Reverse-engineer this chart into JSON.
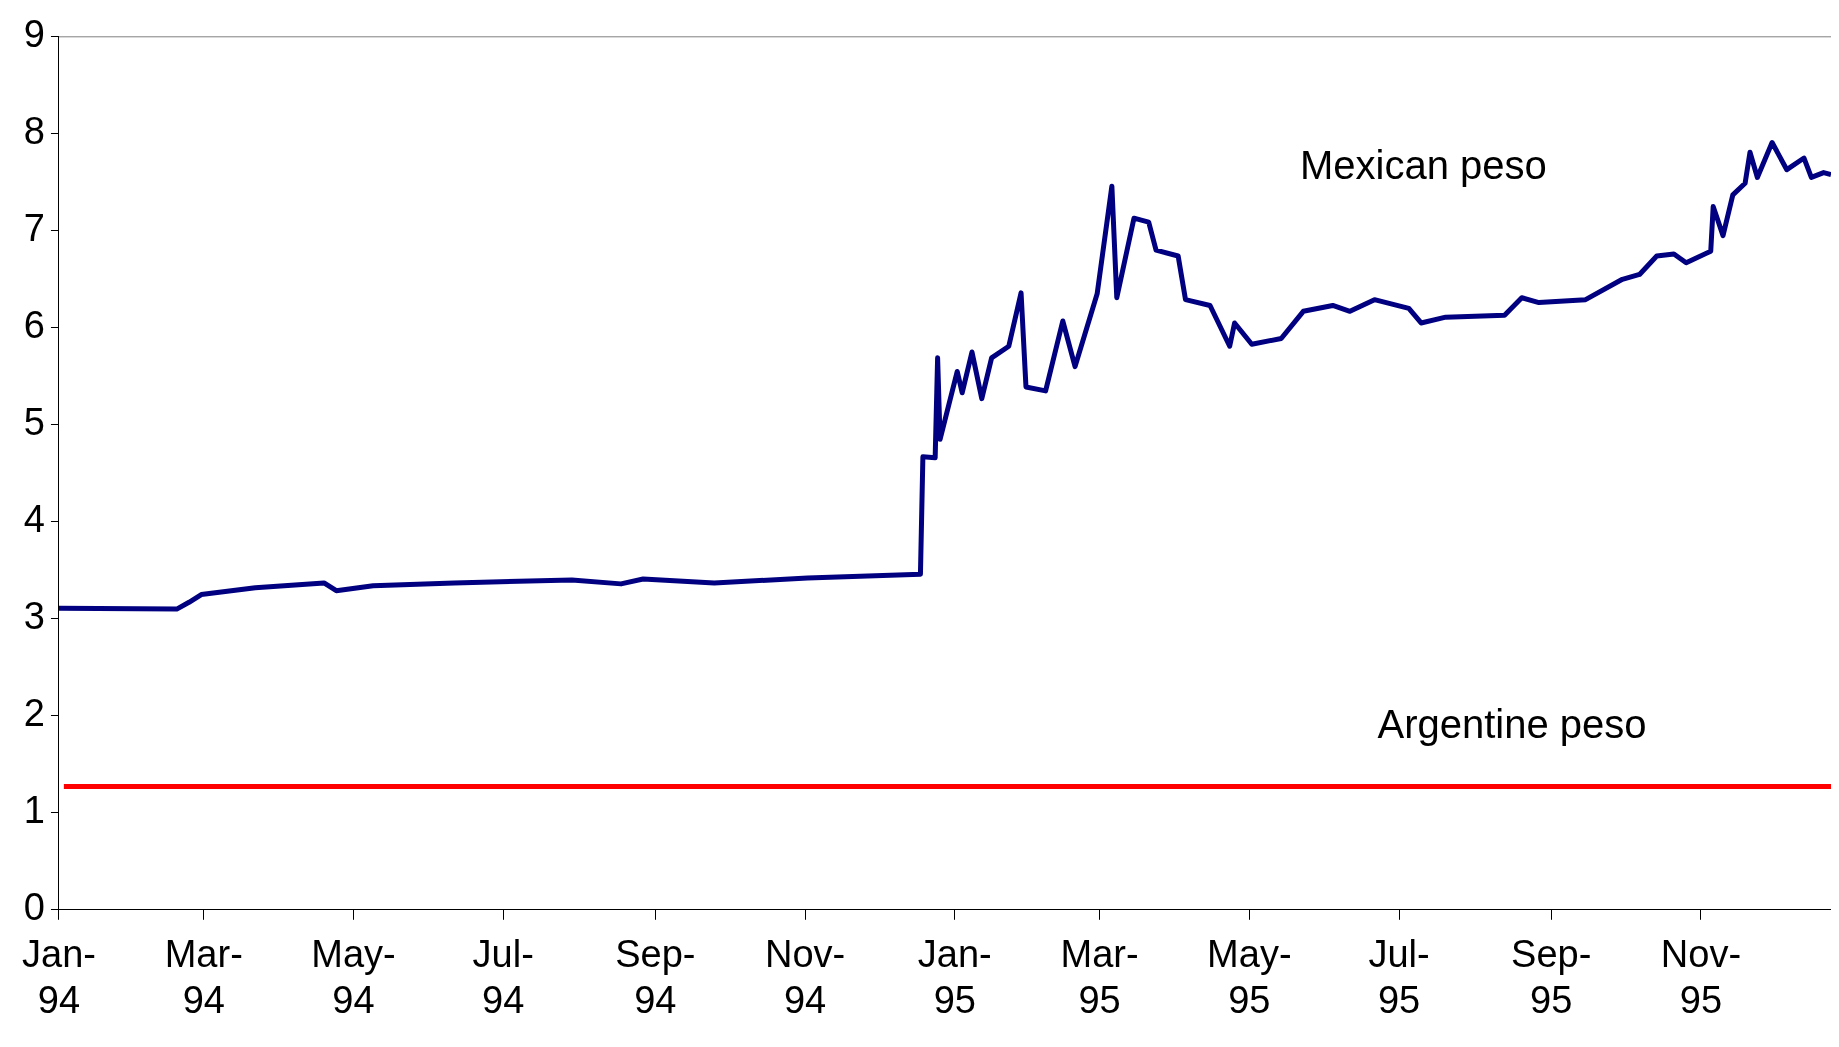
{
  "chart_data": {
    "type": "line",
    "xlim": [
      "1994-01-01",
      "1995-12-24"
    ],
    "ylim": [
      0,
      9
    ],
    "yticks": [
      0,
      1,
      2,
      3,
      4,
      5,
      6,
      7,
      8,
      9
    ],
    "xticks": [
      {
        "value": "1994-01-01",
        "label": "Jan-94"
      },
      {
        "value": "1994-03-01",
        "label": "Mar-94"
      },
      {
        "value": "1994-05-01",
        "label": "May-94"
      },
      {
        "value": "1994-07-01",
        "label": "Jul-94"
      },
      {
        "value": "1994-09-01",
        "label": "Sep-94"
      },
      {
        "value": "1994-11-01",
        "label": "Nov-94"
      },
      {
        "value": "1995-01-01",
        "label": "Jan-95"
      },
      {
        "value": "1995-03-01",
        "label": "Mar-95"
      },
      {
        "value": "1995-05-01",
        "label": "May-95"
      },
      {
        "value": "1995-07-01",
        "label": "Jul-95"
      },
      {
        "value": "1995-09-01",
        "label": "Sep-95"
      },
      {
        "value": "1995-11-01",
        "label": "Nov-95"
      }
    ],
    "grid": false,
    "legend": false,
    "marker": "none",
    "line_style": "solid",
    "series": [
      {
        "name": "Mexican peso",
        "color": "#000080",
        "x": [
          "1994-01-01",
          "1994-02-18",
          "1994-02-23",
          "1994-02-28",
          "1994-03-22",
          "1994-04-19",
          "1994-04-24",
          "1994-05-09",
          "1994-06-11",
          "1994-07-29",
          "1994-08-18",
          "1994-08-27",
          "1994-09-25",
          "1994-11-02",
          "1994-12-18",
          "1994-12-19",
          "1994-12-24",
          "1994-12-25",
          "1994-12-26",
          "1995-01-02",
          "1995-01-04",
          "1995-01-08",
          "1995-01-12",
          "1995-01-16",
          "1995-01-23",
          "1995-01-28",
          "1995-01-30",
          "1995-02-07",
          "1995-02-14",
          "1995-02-19",
          "1995-02-28",
          "1995-03-06",
          "1995-03-08",
          "1995-03-15",
          "1995-03-21",
          "1995-03-24",
          "1995-04-02",
          "1995-04-05",
          "1995-04-15",
          "1995-04-23",
          "1995-04-25",
          "1995-05-02",
          "1995-05-14",
          "1995-05-23",
          "1995-06-04",
          "1995-06-11",
          "1995-06-21",
          "1995-07-05",
          "1995-07-10",
          "1995-07-20",
          "1995-08-13",
          "1995-08-20",
          "1995-08-27",
          "1995-09-15",
          "1995-09-30",
          "1995-10-07",
          "1995-10-14",
          "1995-10-21",
          "1995-10-26",
          "1995-11-05",
          "1995-11-06",
          "1995-11-10",
          "1995-11-14",
          "1995-11-19",
          "1995-11-21",
          "1995-11-24",
          "1995-11-27",
          "1995-11-30",
          "1995-12-06",
          "1995-12-13",
          "1995-12-16",
          "1995-12-21",
          "1995-12-24"
        ],
        "values": [
          3.11,
          3.1,
          3.17,
          3.25,
          3.32,
          3.37,
          3.29,
          3.34,
          3.37,
          3.4,
          3.36,
          3.41,
          3.37,
          3.42,
          3.46,
          4.67,
          4.66,
          5.69,
          4.85,
          5.55,
          5.33,
          5.75,
          5.27,
          5.69,
          5.81,
          6.36,
          5.39,
          5.35,
          6.07,
          5.6,
          6.35,
          7.46,
          6.31,
          7.13,
          7.09,
          6.8,
          6.74,
          6.29,
          6.23,
          5.81,
          6.05,
          5.83,
          5.89,
          6.17,
          6.23,
          6.17,
          6.29,
          6.2,
          6.05,
          6.11,
          6.13,
          6.31,
          6.26,
          6.29,
          6.5,
          6.55,
          6.74,
          6.76,
          6.67,
          6.79,
          7.25,
          6.95,
          7.37,
          7.49,
          7.81,
          7.55,
          7.73,
          7.91,
          7.63,
          7.75,
          7.55,
          7.6,
          7.58
        ]
      },
      {
        "name": "Argentine peso",
        "color": "#ff0000",
        "x": [
          "1994-01-03",
          "1995-12-24"
        ],
        "values": [
          1.27,
          1.27
        ]
      }
    ]
  }
}
